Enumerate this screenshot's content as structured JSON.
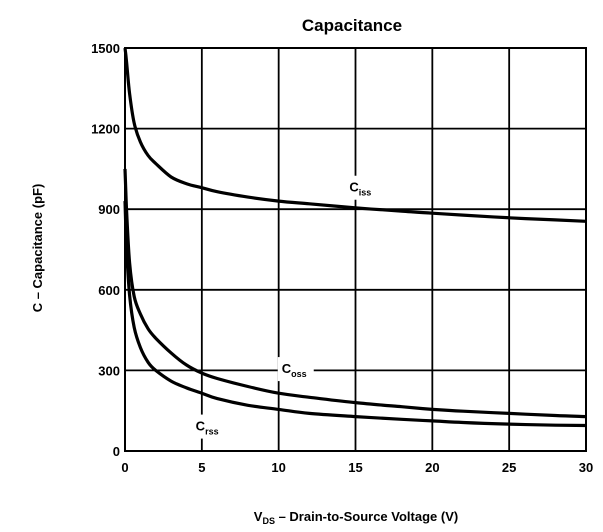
{
  "chart_data": {
    "type": "line",
    "title": "Capacitance",
    "xlabel": {
      "main": "V",
      "sub": "DS",
      "rest": " – Drain-to-Source Voltage (V)"
    },
    "ylabel": "C – Capacitance (pF)",
    "xlim": [
      0,
      30
    ],
    "ylim": [
      0,
      1500
    ],
    "x_ticks": [
      "0",
      "5",
      "10",
      "15",
      "20",
      "25",
      "30"
    ],
    "y_ticks": [
      "0",
      "300",
      "600",
      "900",
      "1200",
      "1500"
    ],
    "grid": true,
    "series": [
      {
        "name": {
          "main": "C",
          "sub": "iss"
        },
        "x": [
          0,
          0.1,
          0.3,
          0.6,
          1,
          1.5,
          2,
          3,
          4,
          5,
          6,
          8,
          10,
          12,
          15,
          18,
          20,
          22,
          25,
          28,
          30
        ],
        "y": [
          1500,
          1450,
          1330,
          1220,
          1150,
          1100,
          1070,
          1020,
          995,
          980,
          965,
          945,
          930,
          920,
          905,
          893,
          885,
          878,
          868,
          860,
          855
        ]
      },
      {
        "name": {
          "main": "C",
          "sub": "oss"
        },
        "x": [
          0,
          0.1,
          0.3,
          0.6,
          1,
          1.5,
          2,
          3,
          4,
          5,
          6,
          8,
          10,
          12,
          15,
          18,
          20,
          22,
          25,
          28,
          30
        ],
        "y": [
          1050,
          900,
          700,
          575,
          510,
          455,
          420,
          365,
          320,
          290,
          270,
          240,
          215,
          200,
          180,
          165,
          155,
          148,
          140,
          132,
          128
        ]
      },
      {
        "name": {
          "main": "C",
          "sub": "rss"
        },
        "x": [
          0,
          0.1,
          0.3,
          0.6,
          1,
          1.5,
          2,
          3,
          4,
          5,
          6,
          8,
          10,
          12,
          15,
          18,
          20,
          22,
          25,
          28,
          30
        ],
        "y": [
          930,
          760,
          580,
          460,
          385,
          330,
          300,
          260,
          235,
          215,
          195,
          170,
          155,
          140,
          128,
          118,
          112,
          106,
          100,
          96,
          95
        ]
      }
    ]
  }
}
